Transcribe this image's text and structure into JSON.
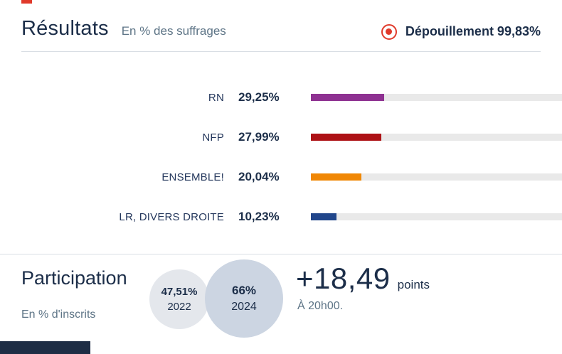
{
  "header": {
    "title": "Résultats",
    "subtitle": "En % des suffrages",
    "counting": {
      "label": "Dépouillement 99,83%",
      "icon": "live-record-icon",
      "icon_color": "#e0392a"
    }
  },
  "chart_data": {
    "type": "bar",
    "orientation": "horizontal",
    "title": "Résultats en % des suffrages",
    "unit": "%",
    "xlim": [
      0,
      100
    ],
    "grid": false,
    "legend": false,
    "categories": [
      "RN",
      "NFP",
      "ENSEMBLE!",
      "LR, DIVERS DROITE"
    ],
    "values": [
      29.25,
      27.99,
      20.04,
      10.23
    ],
    "value_labels": [
      "29,25%",
      "27,99%",
      "20,04%",
      "10,23%"
    ],
    "bar_colors": [
      "#8e3191",
      "#ad1115",
      "#f08705",
      "#21468b"
    ],
    "track_color": "#e9e9e9"
  },
  "participation": {
    "title": "Participation",
    "subtitle": "En % d'inscrits",
    "circles": [
      {
        "value": "47,51%",
        "year": "2022",
        "color": "#e4e7ec"
      },
      {
        "value": "66%",
        "year": "2024",
        "color": "#ccd5e2"
      }
    ],
    "delta": {
      "value": "+18,49",
      "unit": "points",
      "time": "À 20h00."
    }
  },
  "colors": {
    "heading": "#1c2e49",
    "muted": "#5d7486",
    "divider": "#d9dee4",
    "accent_red": "#e0392a",
    "bottom_bar": "#1e2d45"
  }
}
